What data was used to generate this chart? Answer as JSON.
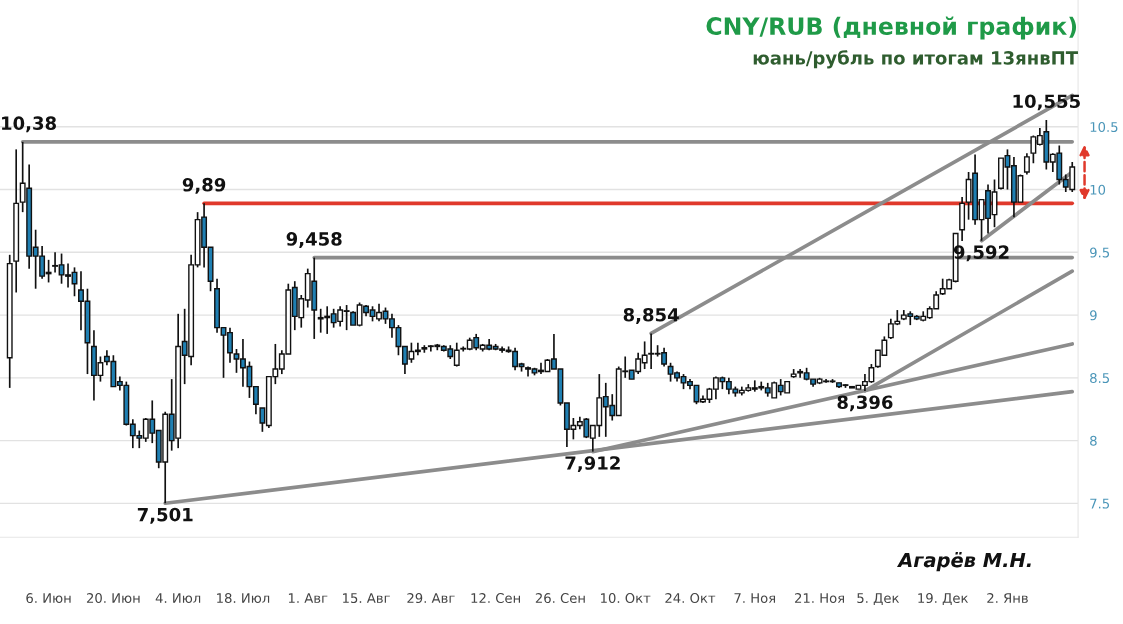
{
  "chart_data": {
    "type": "candlestick",
    "title": "CNY/RUB (дневной график)",
    "subtitle": "юань/рубль по итогам 13янвПТ",
    "categories": [
      null,
      null,
      null,
      null,
      null,
      null,
      "6. Июн",
      null,
      null,
      null,
      null,
      null,
      null,
      null,
      null,
      null,
      "20. Июн",
      null,
      null,
      null,
      null,
      null,
      null,
      null,
      null,
      null,
      "4. Июл",
      null,
      null,
      null,
      null,
      null,
      null,
      null,
      null,
      null,
      "18. Июл",
      null,
      null,
      null,
      null,
      null,
      null,
      null,
      null,
      null,
      "1. Авг",
      null,
      null,
      null,
      null,
      null,
      null,
      null,
      null,
      "15. Авг",
      null,
      null,
      null,
      null,
      null,
      null,
      null,
      null,
      null,
      "29. Авг",
      null,
      null,
      null,
      null,
      null,
      null,
      null,
      null,
      null,
      "12. Сен",
      null,
      null,
      null,
      null,
      null,
      null,
      null,
      null,
      null,
      "26. Сен",
      null,
      null,
      null,
      null,
      null,
      null,
      null,
      null,
      null,
      "10. Окт",
      null,
      null,
      null,
      null,
      null,
      null,
      null,
      null,
      null,
      "24. Окт",
      null,
      null,
      null,
      null,
      null,
      null,
      null,
      null,
      null,
      "7. Ноя",
      null,
      null,
      null,
      null,
      null,
      null,
      null,
      null,
      null,
      "21. Ноя",
      null,
      null,
      null,
      null,
      null,
      null,
      null,
      null,
      "5. Дек",
      null,
      null,
      null,
      null,
      null,
      null,
      null,
      null,
      null,
      "19. Дек",
      null,
      null,
      null,
      null,
      null,
      null,
      null,
      null,
      null,
      "2. Янв",
      null,
      null,
      null,
      null,
      null,
      null,
      null,
      null,
      null,
      null
    ],
    "ohlc": [
      [
        8.66,
        9.48,
        8.42,
        9.41
      ],
      [
        9.43,
        10.32,
        9.18,
        9.89
      ],
      [
        9.9,
        10.38,
        9.82,
        10.05
      ],
      [
        10.01,
        10.2,
        9.37,
        9.47
      ],
      [
        9.54,
        9.68,
        9.21,
        9.47
      ],
      [
        9.47,
        9.55,
        9.29,
        9.31
      ],
      [
        9.34,
        9.44,
        9.26,
        9.33
      ],
      [
        9.39,
        9.5,
        9.34,
        9.39
      ],
      [
        9.4,
        9.49,
        9.25,
        9.32
      ],
      [
        9.32,
        9.41,
        9.22,
        9.31
      ],
      [
        9.34,
        9.38,
        9.15,
        9.25
      ],
      [
        9.2,
        9.35,
        8.88,
        9.11
      ],
      [
        9.11,
        9.21,
        8.53,
        8.78
      ],
      [
        8.75,
        8.88,
        8.32,
        8.52
      ],
      [
        8.52,
        8.67,
        8.47,
        8.62
      ],
      [
        8.67,
        8.72,
        8.6,
        8.63
      ],
      [
        8.63,
        8.68,
        8.43,
        8.43
      ],
      [
        8.47,
        8.51,
        8.4,
        8.44
      ],
      [
        8.44,
        8.47,
        8.12,
        8.13
      ],
      [
        8.13,
        8.17,
        7.94,
        8.04
      ],
      [
        8.04,
        8.08,
        7.94,
        8.02
      ],
      [
        8.02,
        8.18,
        7.99,
        8.17
      ],
      [
        8.17,
        8.32,
        7.98,
        8.06
      ],
      [
        8.08,
        8.08,
        7.78,
        7.83
      ],
      [
        7.83,
        8.23,
        7.501,
        8.21
      ],
      [
        8.21,
        8.49,
        7.92,
        8.0
      ],
      [
        8.02,
        9.01,
        7.94,
        8.75
      ],
      [
        8.79,
        9.05,
        8.45,
        8.68
      ],
      [
        8.67,
        9.48,
        8.6,
        9.4
      ],
      [
        9.4,
        9.82,
        9.38,
        9.76
      ],
      [
        9.78,
        9.89,
        9.38,
        9.54
      ],
      [
        9.54,
        9.54,
        9.19,
        9.27
      ],
      [
        9.21,
        9.29,
        8.86,
        8.9
      ],
      [
        8.9,
        8.9,
        8.5,
        8.84
      ],
      [
        8.86,
        8.9,
        8.62,
        8.7
      ],
      [
        8.69,
        8.73,
        8.54,
        8.65
      ],
      [
        8.65,
        8.81,
        8.43,
        8.58
      ],
      [
        8.59,
        8.63,
        8.34,
        8.43
      ],
      [
        8.43,
        8.43,
        8.21,
        8.29
      ],
      [
        8.26,
        8.26,
        8.07,
        8.14
      ],
      [
        8.12,
        8.51,
        8.1,
        8.51
      ],
      [
        8.51,
        8.77,
        8.45,
        8.57
      ],
      [
        8.57,
        8.72,
        8.53,
        8.69
      ],
      [
        8.69,
        9.25,
        8.69,
        9.2
      ],
      [
        9.22,
        9.27,
        8.88,
        8.99
      ],
      [
        8.98,
        9.16,
        8.9,
        9.13
      ],
      [
        9.12,
        9.37,
        9.06,
        9.33
      ],
      [
        9.27,
        9.458,
        8.81,
        9.04
      ],
      [
        8.98,
        9.05,
        8.86,
        8.97
      ],
      [
        8.99,
        9.07,
        8.85,
        8.98
      ],
      [
        9.01,
        9.05,
        8.9,
        8.94
      ],
      [
        8.95,
        9.07,
        8.91,
        9.04
      ],
      [
        9.03,
        9.08,
        8.88,
        9.03
      ],
      [
        9.02,
        9.03,
        8.92,
        8.92
      ],
      [
        8.92,
        9.1,
        8.91,
        9.08
      ],
      [
        9.07,
        9.08,
        8.99,
        9.02
      ],
      [
        9.04,
        9.07,
        8.95,
        8.99
      ],
      [
        8.97,
        9.09,
        8.95,
        9.02
      ],
      [
        9.03,
        9.06,
        8.93,
        8.97
      ],
      [
        8.97,
        9.01,
        8.82,
        8.9
      ],
      [
        8.9,
        8.92,
        8.68,
        8.75
      ],
      [
        8.75,
        8.75,
        8.53,
        8.61
      ],
      [
        8.65,
        8.78,
        8.62,
        8.71
      ],
      [
        8.71,
        8.78,
        8.68,
        8.72
      ],
      [
        8.73,
        8.76,
        8.7,
        8.74
      ],
      [
        8.75,
        8.76,
        8.71,
        8.75
      ],
      [
        8.75,
        8.77,
        8.72,
        8.76
      ],
      [
        8.75,
        8.76,
        8.71,
        8.72
      ],
      [
        8.73,
        8.76,
        8.65,
        8.67
      ],
      [
        8.6,
        8.78,
        8.59,
        8.72
      ],
      [
        8.73,
        8.75,
        8.71,
        8.73
      ],
      [
        8.73,
        8.82,
        8.72,
        8.8
      ],
      [
        8.82,
        8.85,
        8.72,
        8.74
      ],
      [
        8.73,
        8.77,
        8.71,
        8.76
      ],
      [
        8.76,
        8.81,
        8.72,
        8.73
      ],
      [
        8.75,
        8.77,
        8.72,
        8.73
      ],
      [
        8.73,
        8.75,
        8.7,
        8.72
      ],
      [
        8.72,
        8.75,
        8.7,
        8.71
      ],
      [
        8.71,
        8.74,
        8.56,
        8.59
      ],
      [
        8.61,
        8.62,
        8.55,
        8.59
      ],
      [
        8.58,
        8.59,
        8.51,
        8.57
      ],
      [
        8.57,
        8.58,
        8.52,
        8.54
      ],
      [
        8.56,
        8.62,
        8.53,
        8.55
      ],
      [
        8.55,
        8.65,
        8.55,
        8.64
      ],
      [
        8.65,
        8.85,
        8.57,
        8.57
      ],
      [
        8.57,
        8.57,
        8.28,
        8.3
      ],
      [
        8.3,
        8.3,
        7.95,
        8.09
      ],
      [
        8.09,
        8.18,
        8.01,
        8.12
      ],
      [
        8.12,
        8.19,
        8.09,
        8.15
      ],
      [
        8.17,
        8.18,
        8.02,
        8.03
      ],
      [
        8.02,
        8.12,
        7.912,
        8.12
      ],
      [
        8.12,
        8.53,
        8.03,
        8.34
      ],
      [
        8.35,
        8.46,
        8.03,
        8.27
      ],
      [
        8.28,
        8.37,
        8.16,
        8.2
      ],
      [
        8.2,
        8.59,
        8.2,
        8.57
      ],
      [
        8.55,
        8.67,
        8.5,
        8.55
      ],
      [
        8.56,
        8.56,
        8.49,
        8.49
      ],
      [
        8.55,
        8.7,
        8.53,
        8.65
      ],
      [
        8.62,
        8.79,
        8.57,
        8.68
      ],
      [
        8.69,
        8.854,
        8.57,
        8.69
      ],
      [
        8.69,
        8.76,
        8.67,
        8.69
      ],
      [
        8.7,
        8.74,
        8.59,
        8.61
      ],
      [
        8.59,
        8.62,
        8.47,
        8.53
      ],
      [
        8.54,
        8.55,
        8.47,
        8.5
      ],
      [
        8.51,
        8.53,
        8.41,
        8.46
      ],
      [
        8.47,
        8.49,
        8.41,
        8.44
      ],
      [
        8.44,
        8.44,
        8.29,
        8.31
      ],
      [
        8.31,
        8.36,
        8.3,
        8.33
      ],
      [
        8.33,
        8.42,
        8.3,
        8.41
      ],
      [
        8.41,
        8.51,
        8.33,
        8.5
      ],
      [
        8.5,
        8.51,
        8.41,
        8.47
      ],
      [
        8.47,
        8.5,
        8.37,
        8.41
      ],
      [
        8.41,
        8.43,
        8.35,
        8.38
      ],
      [
        8.38,
        8.43,
        8.36,
        8.4
      ],
      [
        8.4,
        8.45,
        8.39,
        8.42
      ],
      [
        8.41,
        8.48,
        8.39,
        8.42
      ],
      [
        8.43,
        8.47,
        8.4,
        8.42
      ],
      [
        8.42,
        8.46,
        8.35,
        8.38
      ],
      [
        8.34,
        8.47,
        8.34,
        8.46
      ],
      [
        8.44,
        8.49,
        8.36,
        8.39
      ],
      [
        8.38,
        8.47,
        8.38,
        8.47
      ],
      [
        8.51,
        8.57,
        8.5,
        8.53
      ],
      [
        8.54,
        8.57,
        8.5,
        8.55
      ],
      [
        8.54,
        8.58,
        8.48,
        8.49
      ],
      [
        8.49,
        8.49,
        8.43,
        8.45
      ],
      [
        8.46,
        8.5,
        8.45,
        8.49
      ],
      [
        8.47,
        8.49,
        8.46,
        8.47
      ],
      [
        8.47,
        8.49,
        8.46,
        8.47
      ],
      [
        8.46,
        8.46,
        8.42,
        8.43
      ],
      [
        8.44,
        8.45,
        8.42,
        8.44
      ],
      [
        8.43,
        8.43,
        8.42,
        8.42
      ],
      [
        8.41,
        8.44,
        8.41,
        8.44
      ],
      [
        8.44,
        8.53,
        8.396,
        8.47
      ],
      [
        8.47,
        8.61,
        8.46,
        8.58
      ],
      [
        8.59,
        8.72,
        8.58,
        8.72
      ],
      [
        8.68,
        8.83,
        8.68,
        8.8
      ],
      [
        8.82,
        8.97,
        8.81,
        8.93
      ],
      [
        8.93,
        9.04,
        8.92,
        8.95
      ],
      [
        8.97,
        9.04,
        8.96,
        9.0
      ],
      [
        9.01,
        9.03,
        8.92,
        8.99
      ],
      [
        8.99,
        9.0,
        8.96,
        8.97
      ],
      [
        8.96,
        9.03,
        8.95,
        8.99
      ],
      [
        8.98,
        9.07,
        8.97,
        9.05
      ],
      [
        9.05,
        9.19,
        9.05,
        9.16
      ],
      [
        9.17,
        9.29,
        9.16,
        9.21
      ],
      [
        9.21,
        9.29,
        9.21,
        9.28
      ],
      [
        9.27,
        9.65,
        9.26,
        9.65
      ],
      [
        9.68,
        9.94,
        9.59,
        9.89
      ],
      [
        9.9,
        10.14,
        9.76,
        10.08
      ],
      [
        10.13,
        10.28,
        9.72,
        9.76
      ],
      [
        9.76,
        9.92,
        9.592,
        9.92
      ],
      [
        9.99,
        10.04,
        9.65,
        9.77
      ],
      [
        9.8,
        10.08,
        9.7,
        9.98
      ],
      [
        10.01,
        10.25,
        10.0,
        10.25
      ],
      [
        10.27,
        10.32,
        10.0,
        10.18
      ],
      [
        10.19,
        10.26,
        9.78,
        9.9
      ],
      [
        9.9,
        10.12,
        9.9,
        10.11
      ],
      [
        10.14,
        10.29,
        10.12,
        10.26
      ],
      [
        10.29,
        10.43,
        10.21,
        10.42
      ],
      [
        10.36,
        10.49,
        10.35,
        10.43
      ],
      [
        10.46,
        10.555,
        10.16,
        10.22
      ],
      [
        10.22,
        10.29,
        10.14,
        10.28
      ],
      [
        10.29,
        10.35,
        10.04,
        10.08
      ],
      [
        10.08,
        10.12,
        9.98,
        10.02
      ],
      [
        10.0,
        10.22,
        9.98,
        10.18
      ]
    ],
    "series": [
      {
        "type": "line",
        "color": "#8c8c8c",
        "values": [
          null,
          null,
          10.38,
          null,
          null,
          null,
          null,
          null,
          null,
          null,
          null,
          null,
          null,
          null,
          null,
          null,
          null,
          null,
          null,
          null,
          null,
          null,
          null,
          null,
          null,
          null,
          null,
          null,
          null,
          null,
          null,
          null,
          null,
          null,
          null,
          null,
          null,
          null,
          null,
          null,
          null,
          null,
          null,
          null,
          null,
          null,
          null,
          null,
          null,
          null,
          null,
          null,
          null,
          null,
          null,
          null,
          null,
          null,
          null,
          null,
          null,
          null,
          null,
          null,
          null,
          null,
          null,
          null,
          null,
          null,
          null,
          null,
          null,
          null,
          null,
          null,
          null,
          null,
          null,
          null,
          null,
          null,
          null,
          null,
          null,
          null,
          null,
          null,
          null,
          null,
          null,
          null,
          null,
          null,
          null,
          null,
          null,
          null,
          null,
          null,
          null,
          null,
          null,
          null,
          null,
          null,
          null,
          null,
          null,
          null,
          null,
          null,
          null,
          null,
          null,
          null,
          null,
          null,
          null,
          null,
          null,
          null,
          null,
          null,
          null,
          null,
          null,
          null,
          null,
          null,
          null,
          null,
          null,
          null,
          null,
          null,
          null,
          null,
          null,
          null,
          null,
          null,
          null,
          null,
          null,
          null,
          null,
          null,
          null,
          null,
          null,
          null,
          null,
          null,
          null,
          null,
          null,
          null,
          null,
          null,
          null,
          null,
          null,
          null,
          10.38
        ]
      },
      {
        "type": "line",
        "color": "#e0392b",
        "values": [
          null,
          null,
          null,
          null,
          null,
          null,
          null,
          null,
          null,
          null,
          null,
          null,
          null,
          null,
          null,
          null,
          null,
          null,
          null,
          null,
          null,
          null,
          null,
          null,
          null,
          null,
          null,
          null,
          null,
          null,
          9.89,
          null,
          null,
          null,
          null,
          null,
          null,
          null,
          null,
          null,
          null,
          null,
          null,
          null,
          null,
          null,
          null,
          null,
          null,
          null,
          null,
          null,
          null,
          null,
          null,
          null,
          null,
          null,
          null,
          null,
          null,
          null,
          null,
          null,
          null,
          null,
          null,
          null,
          null,
          null,
          null,
          null,
          null,
          null,
          null,
          null,
          null,
          null,
          null,
          null,
          null,
          null,
          null,
          null,
          null,
          null,
          null,
          null,
          null,
          null,
          null,
          null,
          null,
          null,
          null,
          null,
          null,
          null,
          null,
          null,
          null,
          null,
          null,
          null,
          null,
          null,
          null,
          null,
          null,
          null,
          null,
          null,
          null,
          null,
          null,
          null,
          null,
          null,
          null,
          null,
          null,
          null,
          null,
          null,
          null,
          null,
          null,
          null,
          null,
          null,
          null,
          null,
          null,
          null,
          null,
          null,
          null,
          null,
          null,
          null,
          null,
          null,
          null,
          null,
          null,
          null,
          null,
          null,
          null,
          null,
          null,
          null,
          null,
          null,
          null,
          null,
          null,
          null,
          null,
          null,
          null,
          null,
          null,
          null,
          9.89
        ]
      },
      {
        "type": "line",
        "color": "#8c8c8c",
        "values": [
          null,
          null,
          null,
          null,
          null,
          null,
          null,
          null,
          null,
          null,
          null,
          null,
          null,
          null,
          null,
          null,
          null,
          null,
          null,
          null,
          null,
          null,
          null,
          null,
          null,
          null,
          null,
          null,
          null,
          null,
          null,
          null,
          null,
          null,
          null,
          null,
          null,
          null,
          null,
          null,
          null,
          null,
          null,
          null,
          null,
          null,
          null,
          9.458,
          null,
          null,
          null,
          null,
          null,
          null,
          null,
          null,
          null,
          null,
          null,
          null,
          null,
          null,
          null,
          null,
          null,
          null,
          null,
          null,
          null,
          null,
          null,
          null,
          null,
          null,
          null,
          null,
          null,
          null,
          null,
          null,
          null,
          null,
          null,
          null,
          null,
          null,
          null,
          null,
          null,
          null,
          null,
          null,
          null,
          null,
          null,
          null,
          null,
          null,
          null,
          null,
          null,
          null,
          null,
          null,
          null,
          null,
          null,
          null,
          null,
          null,
          null,
          null,
          null,
          null,
          null,
          null,
          null,
          null,
          null,
          null,
          null,
          null,
          null,
          null,
          null,
          null,
          null,
          null,
          null,
          null,
          null,
          null,
          null,
          null,
          null,
          null,
          null,
          null,
          null,
          null,
          null,
          null,
          null,
          null,
          null,
          null,
          null,
          null,
          null,
          null,
          null,
          null,
          null,
          null,
          null,
          null,
          null,
          null,
          null,
          null,
          null,
          null,
          null,
          null,
          9.458
        ]
      },
      {
        "type": "line",
        "color": "#8c8c8c",
        "values": [
          null,
          null,
          null,
          null,
          null,
          null,
          null,
          null,
          null,
          null,
          null,
          null,
          null,
          null,
          null,
          null,
          null,
          null,
          null,
          null,
          null,
          null,
          null,
          null,
          7.501,
          null,
          null,
          null,
          null,
          null,
          null,
          null,
          null,
          null,
          null,
          null,
          null,
          null,
          null,
          null,
          null,
          null,
          null,
          null,
          null,
          null,
          null,
          null,
          null,
          null,
          null,
          null,
          null,
          null,
          null,
          null,
          null,
          null,
          null,
          null,
          null,
          null,
          null,
          null,
          null,
          null,
          null,
          null,
          null,
          null,
          null,
          null,
          null,
          null,
          null,
          null,
          null,
          null,
          null,
          null,
          null,
          null,
          null,
          null,
          null,
          null,
          null,
          null,
          null,
          null,
          null,
          null,
          null,
          null,
          null,
          null,
          null,
          null,
          null,
          null,
          null,
          null,
          null,
          null,
          null,
          null,
          null,
          null,
          null,
          null,
          null,
          null,
          null,
          null,
          null,
          null,
          null,
          null,
          null,
          null,
          null,
          null,
          null,
          null,
          null,
          null,
          null,
          null,
          null,
          null,
          null,
          null,
          null,
          null,
          null,
          null,
          null,
          null,
          null,
          null,
          null,
          null,
          null,
          null,
          null,
          null,
          null,
          null,
          null,
          null,
          null,
          null,
          null,
          null,
          null,
          null,
          null,
          null,
          null,
          null,
          null,
          null,
          null,
          null,
          8.39
        ]
      },
      {
        "type": "line",
        "color": "#8c8c8c",
        "values": [
          null,
          null,
          null,
          null,
          null,
          null,
          null,
          null,
          null,
          null,
          null,
          null,
          null,
          null,
          null,
          null,
          null,
          null,
          null,
          null,
          null,
          null,
          null,
          null,
          null,
          null,
          null,
          null,
          null,
          null,
          null,
          null,
          null,
          null,
          null,
          null,
          null,
          null,
          null,
          null,
          null,
          null,
          null,
          null,
          null,
          null,
          null,
          null,
          null,
          null,
          null,
          null,
          null,
          null,
          null,
          null,
          null,
          null,
          null,
          null,
          null,
          null,
          null,
          null,
          null,
          null,
          null,
          null,
          null,
          null,
          null,
          null,
          null,
          null,
          null,
          null,
          null,
          null,
          null,
          null,
          null,
          null,
          null,
          null,
          null,
          null,
          null,
          null,
          null,
          null,
          7.912,
          null,
          null,
          null,
          null,
          null,
          null,
          null,
          null,
          null,
          null,
          null,
          null,
          null,
          null,
          null,
          null,
          null,
          null,
          null,
          null,
          null,
          null,
          null,
          null,
          null,
          null,
          null,
          null,
          null,
          null,
          null,
          null,
          null,
          null,
          null,
          null,
          null,
          null,
          null,
          null,
          null,
          null,
          null,
          null,
          null,
          null,
          null,
          null,
          null,
          null,
          null,
          null,
          null,
          null,
          null,
          null,
          null,
          null,
          null,
          null,
          null,
          null,
          null,
          null,
          null,
          null,
          null,
          null,
          null,
          null,
          null,
          null,
          null,
          8.77
        ]
      },
      {
        "type": "line",
        "color": "#8c8c8c",
        "values": [
          null,
          null,
          null,
          null,
          null,
          null,
          null,
          null,
          null,
          null,
          null,
          null,
          null,
          null,
          null,
          null,
          null,
          null,
          null,
          null,
          null,
          null,
          null,
          null,
          null,
          null,
          null,
          null,
          null,
          null,
          null,
          null,
          null,
          null,
          null,
          null,
          null,
          null,
          null,
          null,
          null,
          null,
          null,
          null,
          null,
          null,
          null,
          null,
          null,
          null,
          null,
          null,
          null,
          null,
          null,
          null,
          null,
          null,
          null,
          null,
          null,
          null,
          null,
          null,
          null,
          null,
          null,
          null,
          null,
          null,
          null,
          null,
          null,
          null,
          null,
          null,
          null,
          null,
          null,
          null,
          null,
          null,
          null,
          null,
          null,
          null,
          null,
          null,
          null,
          null,
          null,
          null,
          null,
          null,
          null,
          null,
          null,
          null,
          null,
          8.854,
          null,
          null,
          null,
          null,
          null,
          null,
          null,
          null,
          null,
          null,
          null,
          null,
          null,
          null,
          null,
          null,
          null,
          null,
          null,
          null,
          null,
          null,
          null,
          null,
          null,
          null,
          null,
          null,
          null,
          null,
          null,
          null,
          null,
          null,
          null,
          null,
          null,
          null,
          null,
          null,
          null,
          null,
          null,
          null,
          null,
          null,
          null,
          null,
          null,
          null,
          null,
          null,
          null,
          null,
          null,
          null,
          null,
          null,
          null,
          null,
          null,
          null,
          null,
          null,
          10.75
        ]
      },
      {
        "type": "line",
        "color": "#8c8c8c",
        "values": [
          null,
          null,
          null,
          null,
          null,
          null,
          null,
          null,
          null,
          null,
          null,
          null,
          null,
          null,
          null,
          null,
          null,
          null,
          null,
          null,
          null,
          null,
          null,
          null,
          null,
          null,
          null,
          null,
          null,
          null,
          null,
          null,
          null,
          null,
          null,
          null,
          null,
          null,
          null,
          null,
          null,
          null,
          null,
          null,
          null,
          null,
          null,
          null,
          null,
          null,
          null,
          null,
          null,
          null,
          null,
          null,
          null,
          null,
          null,
          null,
          null,
          null,
          null,
          null,
          null,
          null,
          null,
          null,
          null,
          null,
          null,
          null,
          null,
          null,
          null,
          null,
          null,
          null,
          null,
          null,
          null,
          null,
          null,
          null,
          null,
          null,
          null,
          null,
          null,
          null,
          null,
          null,
          null,
          null,
          null,
          null,
          null,
          null,
          null,
          null,
          null,
          null,
          null,
          null,
          null,
          null,
          null,
          null,
          null,
          null,
          null,
          null,
          null,
          null,
          null,
          null,
          null,
          null,
          null,
          null,
          null,
          null,
          null,
          null,
          null,
          null,
          null,
          null,
          null,
          null,
          null,
          null,
          8.396,
          null,
          null,
          null,
          null,
          null,
          null,
          null,
          null,
          null,
          null,
          null,
          null,
          null,
          null,
          null,
          null,
          null,
          null,
          null,
          null,
          null,
          null,
          null,
          null,
          null,
          null,
          null,
          null,
          null,
          null,
          null,
          9.35
        ]
      },
      {
        "type": "line",
        "color": "#8c8c8c",
        "values": [
          null,
          null,
          null,
          null,
          null,
          null,
          null,
          null,
          null,
          null,
          null,
          null,
          null,
          null,
          null,
          null,
          null,
          null,
          null,
          null,
          null,
          null,
          null,
          null,
          null,
          null,
          null,
          null,
          null,
          null,
          null,
          null,
          null,
          null,
          null,
          null,
          null,
          null,
          null,
          null,
          null,
          null,
          null,
          null,
          null,
          null,
          null,
          null,
          null,
          null,
          null,
          null,
          null,
          null,
          null,
          null,
          null,
          null,
          null,
          null,
          null,
          null,
          null,
          null,
          null,
          null,
          null,
          null,
          null,
          null,
          null,
          null,
          null,
          null,
          null,
          null,
          null,
          null,
          null,
          null,
          null,
          null,
          null,
          null,
          null,
          null,
          null,
          null,
          null,
          null,
          null,
          null,
          null,
          null,
          null,
          null,
          null,
          null,
          null,
          null,
          null,
          null,
          null,
          null,
          null,
          null,
          null,
          null,
          null,
          null,
          null,
          null,
          null,
          null,
          null,
          null,
          null,
          null,
          null,
          null,
          null,
          null,
          null,
          null,
          null,
          null,
          null,
          null,
          null,
          null,
          null,
          null,
          null,
          null,
          null,
          null,
          null,
          null,
          null,
          null,
          null,
          null,
          null,
          null,
          null,
          null,
          null,
          null,
          null,
          null,
          9.592,
          null,
          null,
          null,
          null,
          null,
          null,
          null,
          null,
          null,
          null,
          null,
          null,
          null,
          10.14
        ]
      }
    ],
    "annotations": [
      {
        "text": "10,38",
        "y": 10.38
      },
      {
        "text": "9,89",
        "y": 9.89
      },
      {
        "text": "9,458",
        "y": 9.458
      },
      {
        "text": "7,501",
        "y": 7.501
      },
      {
        "text": "7,912",
        "y": 7.912
      },
      {
        "text": "8,854",
        "y": 8.854
      },
      {
        "text": "8,396",
        "y": 8.396
      },
      {
        "text": "9,592",
        "y": 9.592
      },
      {
        "text": "10,555",
        "y": 10.555
      },
      "Агарёв М.Н."
    ],
    "ylim": [
      7.23,
      11.51
    ],
    "yticks": [
      7.5,
      8,
      8.5,
      9,
      9.5,
      10,
      10.5
    ],
    "grid": "y",
    "legend": false
  }
}
